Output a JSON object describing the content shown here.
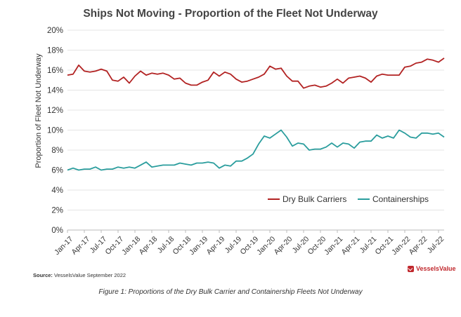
{
  "chart_data": {
    "type": "line",
    "title": "Ships Not Moving - Proportion of the Fleet Not Underway",
    "ylabel": "Proportion of Fleet Not Underway",
    "xlabel": "",
    "ylim": [
      0,
      20
    ],
    "yticks": [
      "0%",
      "2%",
      "4%",
      "6%",
      "8%",
      "10%",
      "12%",
      "14%",
      "16%",
      "18%",
      "20%"
    ],
    "x_tick_labels": [
      "Jan-17",
      "Apr-17",
      "Jul-17",
      "Oct-17",
      "Jan-18",
      "Apr-18",
      "Jul-18",
      "Oct-18",
      "Jan-19",
      "Apr-19",
      "Jul-19",
      "Oct-19",
      "Jan-20",
      "Apr-20",
      "Jul-20",
      "Oct-20",
      "Jan-21",
      "Apr-21",
      "Jul-21",
      "Oct-21",
      "Jan-22",
      "Apr-22",
      "Jul-22"
    ],
    "x_start": "Jan-17",
    "grid": true,
    "legend_position": "bottom-right",
    "series": [
      {
        "name": "Dry Bulk Carriers",
        "color": "#b22222",
        "values": [
          15.5,
          15.6,
          16.5,
          15.9,
          15.8,
          15.9,
          16.1,
          15.9,
          15.0,
          14.9,
          15.3,
          14.7,
          15.4,
          15.9,
          15.5,
          15.7,
          15.6,
          15.7,
          15.5,
          15.1,
          15.2,
          14.7,
          14.5,
          14.5,
          14.8,
          15.0,
          15.8,
          15.4,
          15.8,
          15.6,
          15.1,
          14.8,
          14.9,
          15.1,
          15.3,
          15.6,
          16.4,
          16.1,
          16.2,
          15.4,
          14.9,
          14.9,
          14.2,
          14.4,
          14.5,
          14.3,
          14.4,
          14.7,
          15.1,
          14.7,
          15.2,
          15.3,
          15.4,
          15.2,
          14.8,
          15.4,
          15.6,
          15.5,
          15.5,
          15.5,
          16.3,
          16.4,
          16.7,
          16.8,
          17.1,
          17.0,
          16.8,
          17.2
        ]
      },
      {
        "name": "Containerships",
        "color": "#2a9d9d",
        "values": [
          6.0,
          6.2,
          6.0,
          6.1,
          6.1,
          6.3,
          6.0,
          6.1,
          6.1,
          6.3,
          6.2,
          6.3,
          6.2,
          6.5,
          6.8,
          6.3,
          6.4,
          6.5,
          6.5,
          6.5,
          6.7,
          6.6,
          6.5,
          6.7,
          6.7,
          6.8,
          6.7,
          6.2,
          6.5,
          6.4,
          6.9,
          6.9,
          7.2,
          7.6,
          8.6,
          9.4,
          9.2,
          9.6,
          10.0,
          9.3,
          8.4,
          8.7,
          8.6,
          8.0,
          8.1,
          8.1,
          8.3,
          8.7,
          8.3,
          8.7,
          8.6,
          8.2,
          8.8,
          8.9,
          8.9,
          9.5,
          9.2,
          9.4,
          9.2,
          10.0,
          9.7,
          9.3,
          9.2,
          9.7,
          9.7,
          9.6,
          9.7,
          9.3
        ]
      }
    ]
  },
  "source": {
    "label": "Source:",
    "text": "VesselsValue September 2022"
  },
  "logo": {
    "text": "VesselsValue"
  },
  "caption": "Figure 1: Proportions of the Dry Bulk Carrier and Containership Fleets Not Underway"
}
